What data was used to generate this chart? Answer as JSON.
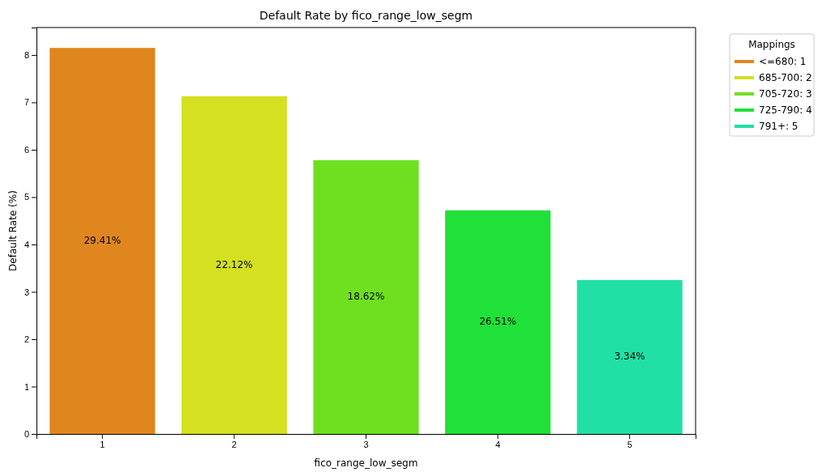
{
  "chart_data": {
    "type": "bar",
    "title": "Default Rate by fico_range_low_segm",
    "xlabel": "fico_range_low_segm",
    "ylabel": "Default Rate (%)",
    "legend_title": "Mappings",
    "categories": [
      "1",
      "2",
      "3",
      "4",
      "5"
    ],
    "stacked": true,
    "series": [
      {
        "name": "<=680: 1",
        "color": "#e0861f",
        "values": [
          8.15,
          null,
          null,
          null,
          null
        ]
      },
      {
        "name": "685-700: 2",
        "color": "#d4e020",
        "values": [
          null,
          7.13,
          null,
          null,
          null
        ]
      },
      {
        "name": "705-720: 3",
        "color": "#6ee020",
        "values": [
          null,
          null,
          5.78,
          null,
          null
        ]
      },
      {
        "name": "725-790: 4",
        "color": "#20e03a",
        "values": [
          null,
          null,
          null,
          4.72,
          null
        ]
      },
      {
        "name": "791+: 5",
        "color": "#20e0a6",
        "values": [
          null,
          null,
          null,
          null,
          3.25
        ]
      }
    ],
    "value_labels": [
      "29.41%",
      "22.12%",
      "18.62%",
      "26.51%",
      "3.34%"
    ],
    "ylim": [
      0,
      8.58
    ],
    "yticks": [
      0,
      1,
      2,
      3,
      4,
      5,
      6,
      7,
      8
    ],
    "grid": false,
    "legend": "right"
  }
}
